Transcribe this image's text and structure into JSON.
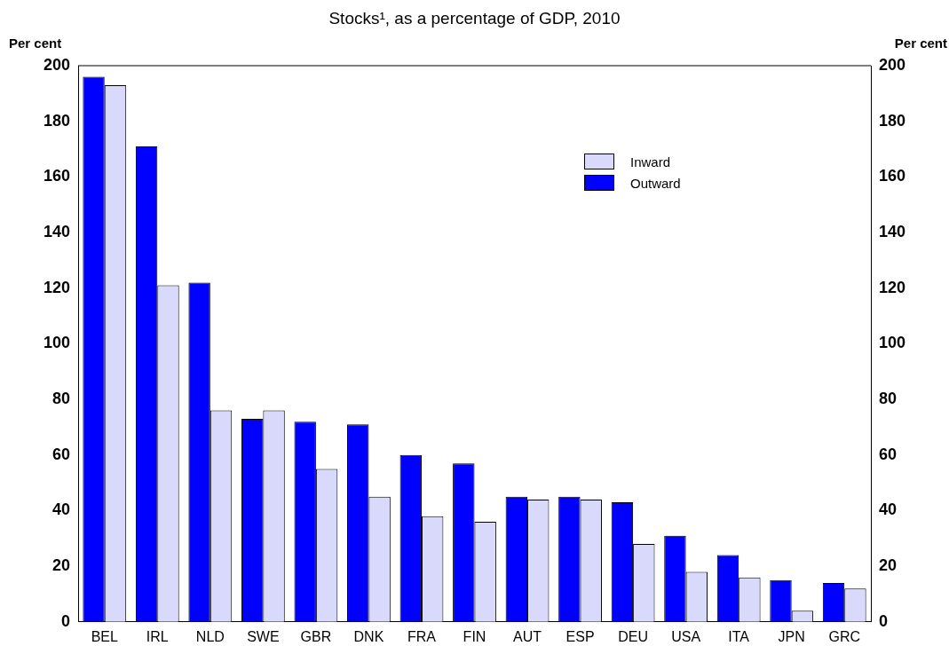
{
  "chart_data": {
    "type": "bar",
    "title": "Stocks¹, as a percentage of GDP, 2010",
    "ylabel": "Per cent",
    "y2label": "Per cent",
    "categories": [
      "BEL",
      "IRL",
      "NLD",
      "SWE",
      "GBR",
      "DNK",
      "FRA",
      "FIN",
      "AUT",
      "ESP",
      "DEU",
      "USA",
      "ITA",
      "JPN",
      "GRC"
    ],
    "series": [
      {
        "name": "Outward",
        "color": "#0000ff",
        "values": [
          196,
          171,
          122,
          73,
          72,
          71,
          60,
          57,
          45,
          45,
          43,
          31,
          24,
          15,
          14
        ]
      },
      {
        "name": "Inward",
        "color": "#d9d9fb",
        "values": [
          193,
          121,
          76,
          76,
          55,
          45,
          38,
          36,
          44,
          44,
          28,
          18,
          16,
          4,
          12
        ]
      }
    ],
    "ylim": [
      0,
      200
    ],
    "yticks": [
      0,
      20,
      40,
      60,
      80,
      100,
      120,
      140,
      160,
      180,
      200
    ],
    "y2lim": [
      0,
      200
    ],
    "y2ticks": [
      0,
      20,
      40,
      60,
      80,
      100,
      120,
      140,
      160,
      180,
      200
    ],
    "grid": false,
    "legend": "top right"
  }
}
